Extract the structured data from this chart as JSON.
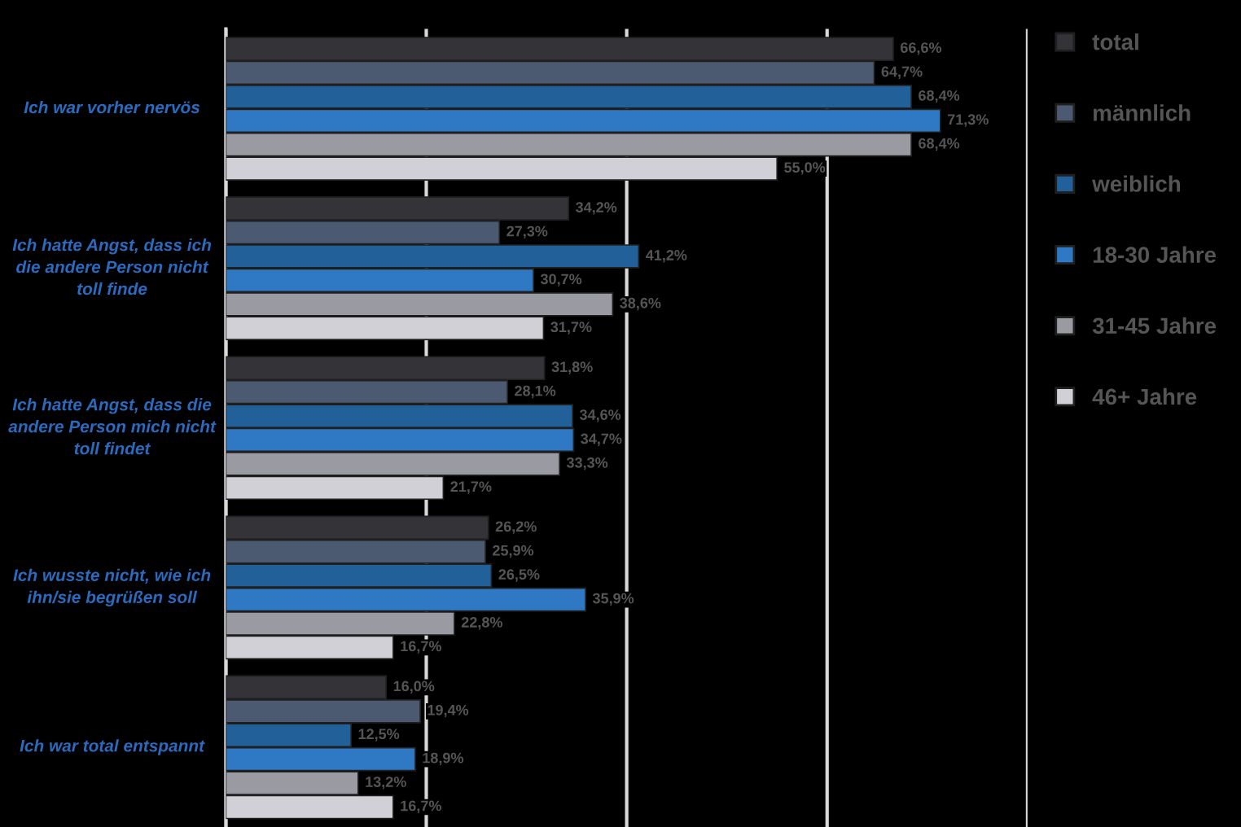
{
  "chart_data": {
    "type": "bar",
    "orientation": "horizontal",
    "categories": [
      "Ich war vorher nervös",
      "Ich hatte Angst, dass ich\ndie andere Person nicht\ntoll finde",
      "Ich hatte Angst, dass die\nandere Person mich nicht\ntoll findet",
      "Ich wusste nicht, wie ich\nihn/sie begrüßen soll",
      "Ich war total entspannt"
    ],
    "series": [
      {
        "name": "total",
        "color": "#333338",
        "values": [
          66.6,
          34.2,
          31.8,
          26.2,
          16.0
        ],
        "value_labels": [
          "66,6%",
          "34,2%",
          "31,8%",
          "26,2%",
          "16,0%"
        ]
      },
      {
        "name": "männlich",
        "color": "#4b5a70",
        "values": [
          64.7,
          27.3,
          28.1,
          25.9,
          19.4
        ],
        "value_labels": [
          "64,7%",
          "27,3%",
          "28,1%",
          "25,9%",
          "19,4%"
        ]
      },
      {
        "name": "weiblich",
        "color": "#22609a",
        "values": [
          68.4,
          41.2,
          34.6,
          26.5,
          12.5
        ],
        "value_labels": [
          "68,4%",
          "41,2%",
          "34,6%",
          "26,5%",
          "12,5%"
        ]
      },
      {
        "name": "18-30 Jahre",
        "color": "#2e78c4",
        "values": [
          71.3,
          30.7,
          34.7,
          35.9,
          18.9
        ],
        "value_labels": [
          "71,3%",
          "30,7%",
          "34,7%",
          "35,9%",
          "18,9%"
        ]
      },
      {
        "name": "31-45 Jahre",
        "color": "#9a9aa2",
        "values": [
          68.4,
          38.6,
          33.3,
          22.8,
          13.2
        ],
        "value_labels": [
          "68,4%",
          "38,6%",
          "33,3%",
          "22,8%",
          "13,2%"
        ]
      },
      {
        "name": "46+ Jahre",
        "color": "#d0d0d6",
        "values": [
          55.0,
          31.7,
          21.7,
          16.7,
          16.7
        ],
        "value_labels": [
          "55,0%",
          "31,7%",
          "21,7%",
          "16,7%",
          "16,7%"
        ]
      }
    ],
    "xlim": [
      0,
      80
    ],
    "xticks": [
      {
        "value": 0,
        "label": null
      },
      {
        "value": 20,
        "label": null
      },
      {
        "value": 40,
        "label": null
      },
      {
        "value": 60,
        "label": null
      },
      {
        "value": 80,
        "label": null
      }
    ],
    "grid": "x",
    "legend": "right",
    "tick_labels": "y"
  }
}
